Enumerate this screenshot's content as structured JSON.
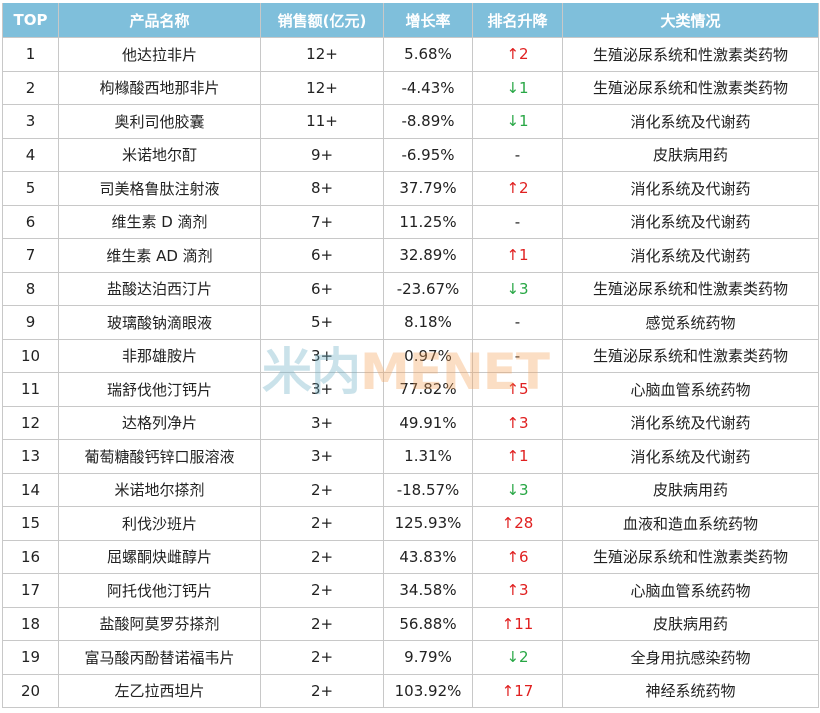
{
  "headers": [
    "TOP",
    "产品名称",
    "销售额(亿元)",
    "增长率",
    "排名升降",
    "大类情况"
  ],
  "colors": {
    "header_bg": "#7fbfdb",
    "up": "#e02020",
    "down": "#28a745"
  },
  "watermark": {
    "cn": "米内",
    "en": "MENET"
  },
  "rows": [
    {
      "top": "1",
      "name": "他达拉非片",
      "sales": "12+",
      "growth": "5.68%",
      "rank": "↑2",
      "dir": "up",
      "category": "生殖泌尿系统和性激素类药物"
    },
    {
      "top": "2",
      "name": "枸橼酸西地那非片",
      "sales": "12+",
      "growth": "-4.43%",
      "rank": "↓1",
      "dir": "down",
      "category": "生殖泌尿系统和性激素类药物"
    },
    {
      "top": "3",
      "name": "奥利司他胶囊",
      "sales": "11+",
      "growth": "-8.89%",
      "rank": "↓1",
      "dir": "down",
      "category": "消化系统及代谢药"
    },
    {
      "top": "4",
      "name": "米诺地尔酊",
      "sales": "9+",
      "growth": "-6.95%",
      "rank": "-",
      "dir": "none",
      "category": "皮肤病用药"
    },
    {
      "top": "5",
      "name": "司美格鲁肽注射液",
      "sales": "8+",
      "growth": "37.79%",
      "rank": "↑2",
      "dir": "up",
      "category": "消化系统及代谢药"
    },
    {
      "top": "6",
      "name": "维生素 D 滴剂",
      "sales": "7+",
      "growth": "11.25%",
      "rank": "-",
      "dir": "none",
      "category": "消化系统及代谢药"
    },
    {
      "top": "7",
      "name": "维生素 AD 滴剂",
      "sales": "6+",
      "growth": "32.89%",
      "rank": "↑1",
      "dir": "up",
      "category": "消化系统及代谢药"
    },
    {
      "top": "8",
      "name": "盐酸达泊西汀片",
      "sales": "6+",
      "growth": "-23.67%",
      "rank": "↓3",
      "dir": "down",
      "category": "生殖泌尿系统和性激素类药物"
    },
    {
      "top": "9",
      "name": "玻璃酸钠滴眼液",
      "sales": "5+",
      "growth": "8.18%",
      "rank": "-",
      "dir": "none",
      "category": "感觉系统药物"
    },
    {
      "top": "10",
      "name": "非那雄胺片",
      "sales": "3+",
      "growth": "0.97%",
      "rank": "-",
      "dir": "none",
      "category": "生殖泌尿系统和性激素类药物"
    },
    {
      "top": "11",
      "name": "瑞舒伐他汀钙片",
      "sales": "3+",
      "growth": "77.82%",
      "rank": "↑5",
      "dir": "up",
      "category": "心脑血管系统药物"
    },
    {
      "top": "12",
      "name": "达格列净片",
      "sales": "3+",
      "growth": "49.91%",
      "rank": "↑3",
      "dir": "up",
      "category": "消化系统及代谢药"
    },
    {
      "top": "13",
      "name": "葡萄糖酸钙锌口服溶液",
      "sales": "3+",
      "growth": "1.31%",
      "rank": "↑1",
      "dir": "up",
      "category": "消化系统及代谢药"
    },
    {
      "top": "14",
      "name": "米诺地尔搽剂",
      "sales": "2+",
      "growth": "-18.57%",
      "rank": "↓3",
      "dir": "down",
      "category": "皮肤病用药"
    },
    {
      "top": "15",
      "name": "利伐沙班片",
      "sales": "2+",
      "growth": "125.93%",
      "rank": "↑28",
      "dir": "up",
      "category": "血液和造血系统药物"
    },
    {
      "top": "16",
      "name": "屈螺酮炔雌醇片",
      "sales": "2+",
      "growth": "43.83%",
      "rank": "↑6",
      "dir": "up",
      "category": "生殖泌尿系统和性激素类药物"
    },
    {
      "top": "17",
      "name": "阿托伐他汀钙片",
      "sales": "2+",
      "growth": "34.58%",
      "rank": "↑3",
      "dir": "up",
      "category": "心脑血管系统药物"
    },
    {
      "top": "18",
      "name": "盐酸阿莫罗芬搽剂",
      "sales": "2+",
      "growth": "56.88%",
      "rank": "↑11",
      "dir": "up",
      "category": "皮肤病用药"
    },
    {
      "top": "19",
      "name": "富马酸丙酚替诺福韦片",
      "sales": "2+",
      "growth": "9.79%",
      "rank": "↓2",
      "dir": "down",
      "category": "全身用抗感染药物"
    },
    {
      "top": "20",
      "name": "左乙拉西坦片",
      "sales": "2+",
      "growth": "103.92%",
      "rank": "↑17",
      "dir": "up",
      "category": "神经系统药物"
    }
  ]
}
